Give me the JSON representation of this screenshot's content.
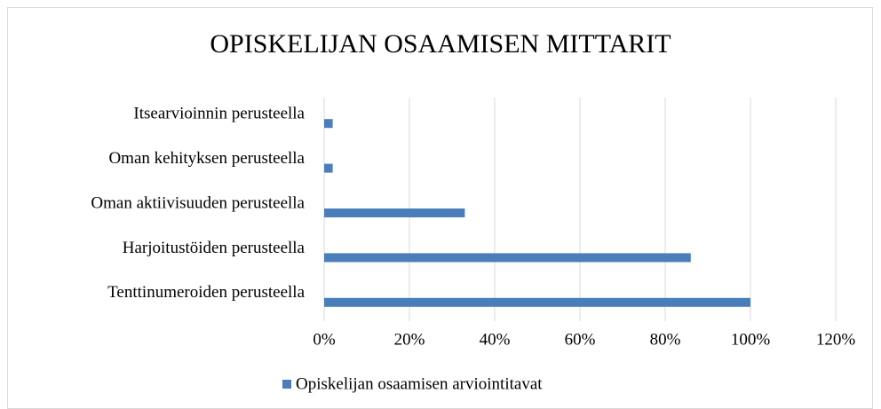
{
  "chart_data": {
    "type": "bar",
    "orientation": "horizontal",
    "title": "OPISKELIJAN OSAAMISEN MITTARIT",
    "categories": [
      "Itsearvioinnin perusteella",
      "Oman kehityksen perusteella",
      "Oman aktiivisuuden perusteella",
      "Harjoitustöiden perusteella",
      "Tenttinumeroiden perusteella"
    ],
    "series": [
      {
        "name": "Opiskelijan osaamisen arviointitavat",
        "color": "#4a7ebb",
        "values": [
          2,
          2,
          33,
          86,
          100
        ]
      }
    ],
    "xlim": [
      0,
      120
    ],
    "xticks": [
      {
        "value": 0,
        "label": "0%"
      },
      {
        "value": 20,
        "label": "20%"
      },
      {
        "value": 40,
        "label": "40%"
      },
      {
        "value": 60,
        "label": "60%"
      },
      {
        "value": 80,
        "label": "80%"
      },
      {
        "value": 100,
        "label": "100%"
      },
      {
        "value": 120,
        "label": "120%"
      }
    ],
    "grid": true,
    "legend": "bottom"
  }
}
